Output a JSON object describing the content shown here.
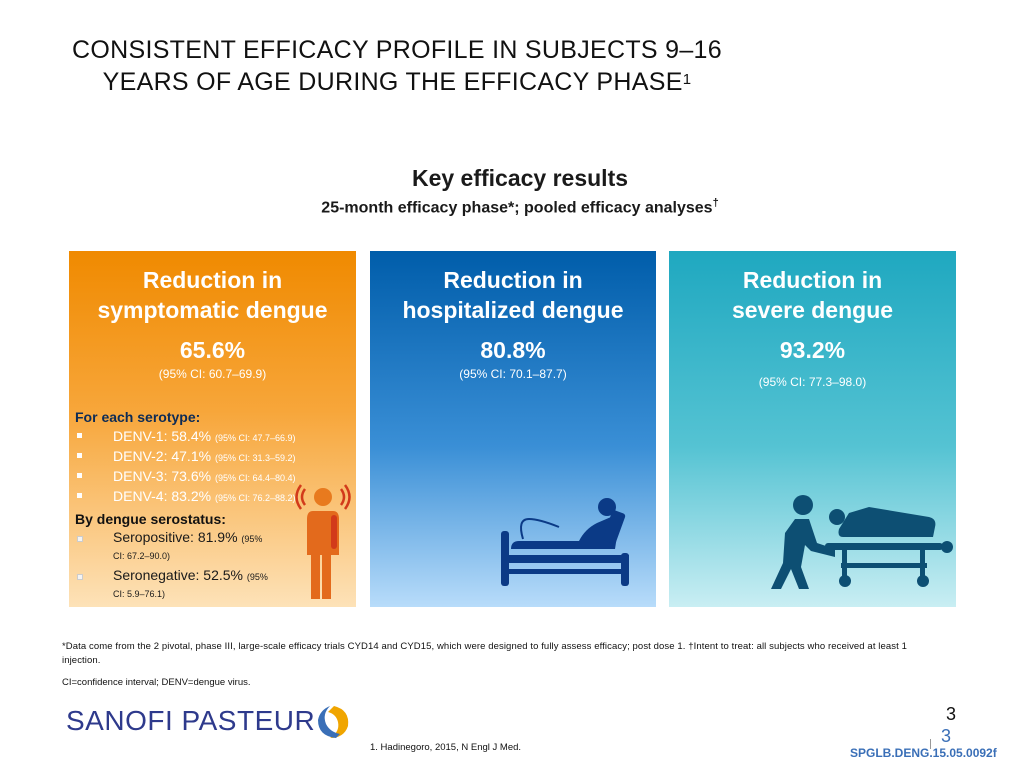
{
  "title": {
    "text": "CONSISTENT EFFICACY PROFILE IN SUBJECTS 9–16 YEARS OF AGE DURING THE EFFICACY PHASE",
    "ref": "1"
  },
  "subhead": {
    "heading": "Key efficacy results",
    "subheading": "25-month efficacy phase*; pooled efficacy analyses",
    "dagger": "†"
  },
  "panels": [
    {
      "title_line1": "Reduction in",
      "title_line2": "symptomatic dengue",
      "value": "65.6%",
      "ci": "(95% CI: 60.7–69.9)",
      "color": "#f08a00"
    },
    {
      "title_line1": "Reduction in",
      "title_line2": "hospitalized dengue",
      "value": "80.8%",
      "ci": "(95% CI: 70.1–87.7)",
      "color": "#005daa"
    },
    {
      "title_line1": "Reduction in",
      "title_line2": "severe dengue",
      "value": "93.2%",
      "ci": "(95% CI: 77.3–98.0)",
      "color": "#1fa8c0"
    }
  ],
  "serotype": {
    "heading": "For each serotype:",
    "items": [
      {
        "label": "DENV-1: 58.4%",
        "ci": "(95% CI: 47.7–66.9)"
      },
      {
        "label": "DENV-2: 47.1%",
        "ci": "(95% CI: 31.3–59.2)"
      },
      {
        "label": "DENV-3: 73.6%",
        "ci": "(95% CI: 64.4–80.4)"
      },
      {
        "label": "DENV-4: 83.2%",
        "ci": "(95% CI: 76.2–88.2)"
      }
    ]
  },
  "serostatus": {
    "heading": "By dengue serostatus:",
    "items": [
      {
        "label": "Seropositive: 81.9%",
        "ci": "(95% CI: 67.2–90.0)"
      },
      {
        "label": "Seronegative: 52.5%",
        "ci": "(95% CI: 5.9–76.1)"
      }
    ]
  },
  "icons": [
    "sick-person-icon",
    "hospital-bed-icon",
    "stretcher-icon"
  ],
  "footnote": "*Data come from the 2 pivotal, phase III, large-scale efficacy trials CYD14 and CYD15, which were designed to fully assess efficacy; post dose 1. †Intent to treat: all subjects who received at least 1 injection.",
  "abbrev": "CI=confidence interval; DENV=dengue virus.",
  "logo": {
    "part1": "SANOFI",
    "part2": " PASTEUR"
  },
  "reference": "1.    Hadinegoro, 2015, N Engl J Med.",
  "page": {
    "number": "3",
    "number_secondary": "3",
    "code": "SPGLB.DENG.15.05.0092f"
  }
}
